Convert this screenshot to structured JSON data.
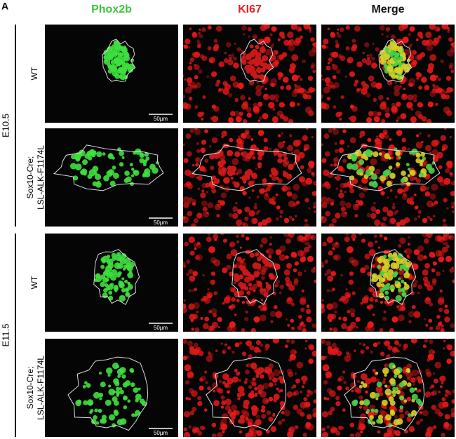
{
  "panel_label": "A",
  "columns": [
    {
      "label": "Phox2b",
      "color": "#3cc43c"
    },
    {
      "label": "KI67",
      "color": "#e82020"
    },
    {
      "label": "Merge",
      "color": "#111111"
    }
  ],
  "groups": [
    {
      "label": "E10.5",
      "rows": [
        {
          "label": [
            "WT"
          ],
          "scale_bar": "50µm"
        },
        {
          "label": [
            "Sox10-Cre;",
            "LSL-ALK-F1174L"
          ],
          "scale_bar": "50µm"
        }
      ]
    },
    {
      "label": "E11.5",
      "rows": [
        {
          "label": [
            "WT"
          ],
          "scale_bar": "50µm"
        },
        {
          "label": [
            "Sox10-Cre;",
            "LSL-ALK-F1174L"
          ],
          "scale_bar": "50µm"
        }
      ]
    }
  ]
}
